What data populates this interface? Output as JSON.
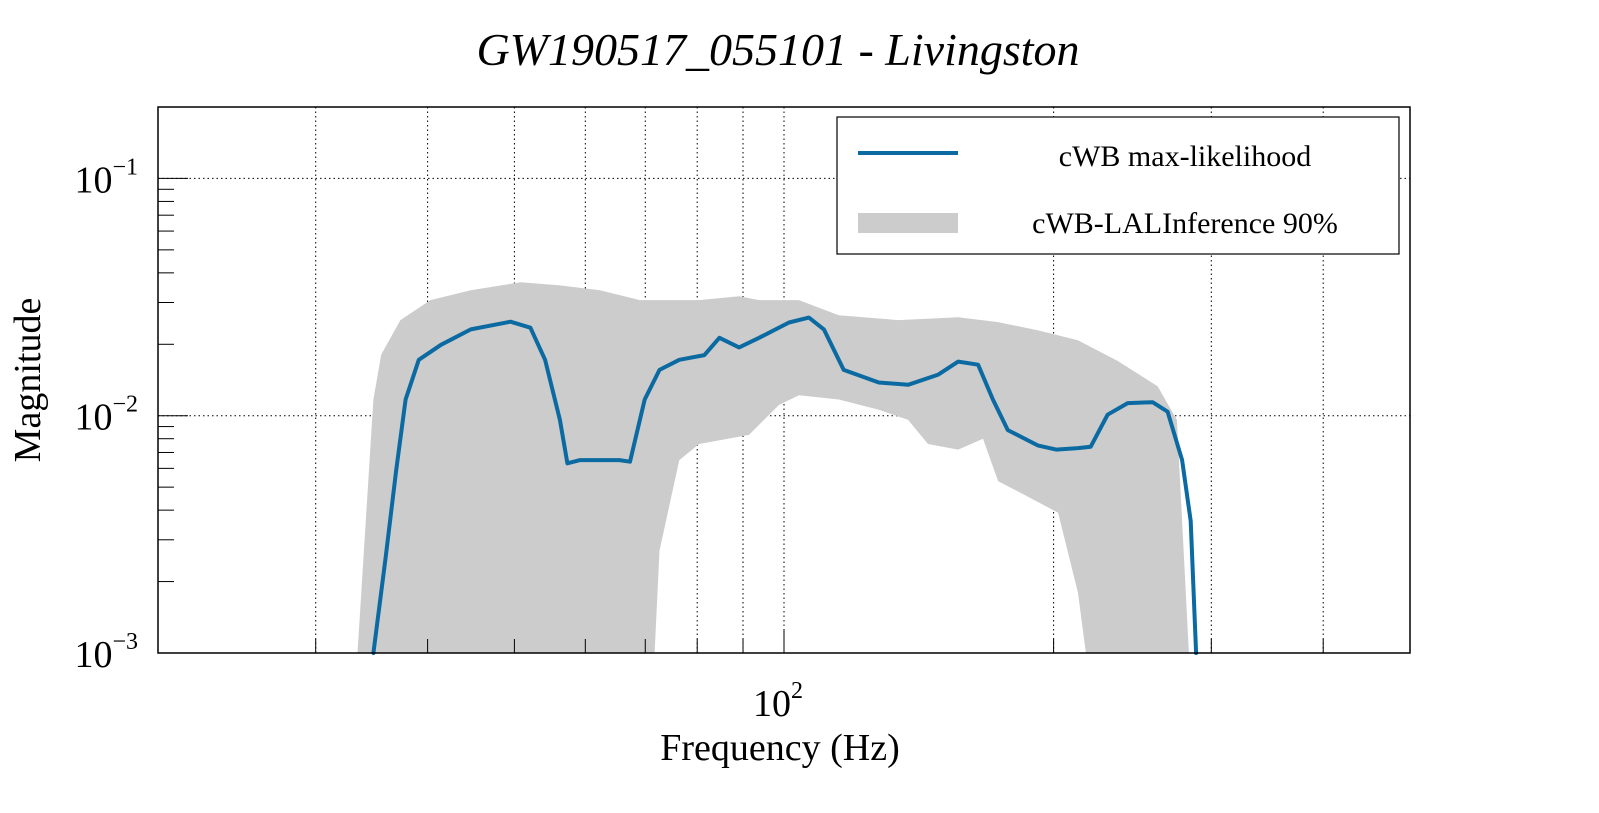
{
  "chart_data": {
    "type": "line",
    "title": "GW190517_055101 - Livingston",
    "xlabel": "Frequency (Hz)",
    "ylabel": "Magnitude",
    "xscale": "log",
    "yscale": "log",
    "xlim": [
      20,
      500
    ],
    "ylim": [
      0.001,
      0.2
    ],
    "grid": true,
    "legend_position": "top-right",
    "x_tick_labels": [
      {
        "value": 100,
        "base": "10",
        "exp": "2"
      }
    ],
    "x_minor_ticks": [
      30,
      40,
      50,
      60,
      70,
      80,
      90,
      200,
      300,
      400
    ],
    "y_tick_labels": [
      {
        "value": 0.1,
        "base": "10",
        "exp": "−1"
      },
      {
        "value": 0.01,
        "base": "10",
        "exp": "−2"
      },
      {
        "value": 0.001,
        "base": "10",
        "exp": "−3"
      }
    ],
    "y_minor_ticks": [
      0.002,
      0.003,
      0.004,
      0.005,
      0.006,
      0.007,
      0.008,
      0.009,
      0.02,
      0.03,
      0.04,
      0.05,
      0.06,
      0.07,
      0.08,
      0.09
    ],
    "series": [
      {
        "name": "cWB max-likelihood",
        "kind": "line",
        "color": "#0a6aa1",
        "x": [
          34.8,
          35.9,
          36.9,
          37.8,
          39.1,
          41.4,
          44.7,
          49.5,
          52.1,
          54.1,
          56.2,
          57.3,
          59.2,
          65.5,
          67.3,
          69.9,
          72.6,
          76.4,
          81.5,
          84.7,
          89.1,
          93.8,
          101.3,
          106.6,
          110.8,
          116.6,
          127.6,
          137.6,
          148.7,
          156.5,
          164.7,
          171.1,
          177.8,
          192.0,
          201.3,
          212.9,
          220.0,
          229.8,
          242.0,
          258.0,
          268.1,
          278.3,
          284.5,
          288.5
        ],
        "y": [
          0.001,
          0.0025,
          0.0059,
          0.0117,
          0.0172,
          0.0199,
          0.0231,
          0.0249,
          0.0235,
          0.0172,
          0.0096,
          0.0063,
          0.0065,
          0.0065,
          0.0064,
          0.0117,
          0.0156,
          0.0172,
          0.018,
          0.0213,
          0.0194,
          0.0213,
          0.0247,
          0.0259,
          0.0231,
          0.0156,
          0.0138,
          0.0135,
          0.0149,
          0.0169,
          0.0164,
          0.0117,
          0.0087,
          0.0075,
          0.0072,
          0.0073,
          0.0074,
          0.0101,
          0.0113,
          0.0114,
          0.0104,
          0.0065,
          0.0036,
          0.001
        ]
      },
      {
        "name": "cWB-LALInference 90%",
        "kind": "band",
        "color": "#cccccc",
        "upper": {
          "x": [
            33.4,
            34.8,
            35.5,
            37.3,
            40.3,
            44.7,
            50.8,
            56.2,
            62.3,
            69.0,
            80.4,
            89.1,
            93.8,
            103.9,
            115.1,
            134.2,
            156.5,
            173.4,
            192.0,
            212.9,
            235.9,
            261.3,
            274.6,
            283.2
          ],
          "y": [
            0.001,
            0.0117,
            0.0181,
            0.0253,
            0.0307,
            0.0338,
            0.0365,
            0.0354,
            0.0338,
            0.0307,
            0.0307,
            0.0319,
            0.0307,
            0.0307,
            0.0265,
            0.0253,
            0.026,
            0.0248,
            0.0229,
            0.0208,
            0.017,
            0.0133,
            0.0096,
            0.001
          ]
        },
        "lower": {
          "x": [
            71.7,
            72.6,
            76.4,
            80.4,
            91.4,
            98.7,
            103.9,
            115.1,
            127.6,
            137.6,
            144.8,
            156.5,
            166.8,
            173.4,
            182.4,
            202.3,
            212.9,
            217.3
          ],
          "y": [
            0.001,
            0.0027,
            0.0065,
            0.0076,
            0.0083,
            0.0111,
            0.0122,
            0.0117,
            0.0106,
            0.0096,
            0.0076,
            0.0072,
            0.008,
            0.0053,
            0.0048,
            0.0039,
            0.0018,
            0.001
          ]
        }
      }
    ]
  },
  "legend": {
    "items": [
      {
        "label": "cWB max-likelihood",
        "color": "#0a6aa1",
        "kind": "line"
      },
      {
        "label": "cWB-LALInference 90%",
        "color": "#cccccc",
        "kind": "band"
      }
    ]
  }
}
